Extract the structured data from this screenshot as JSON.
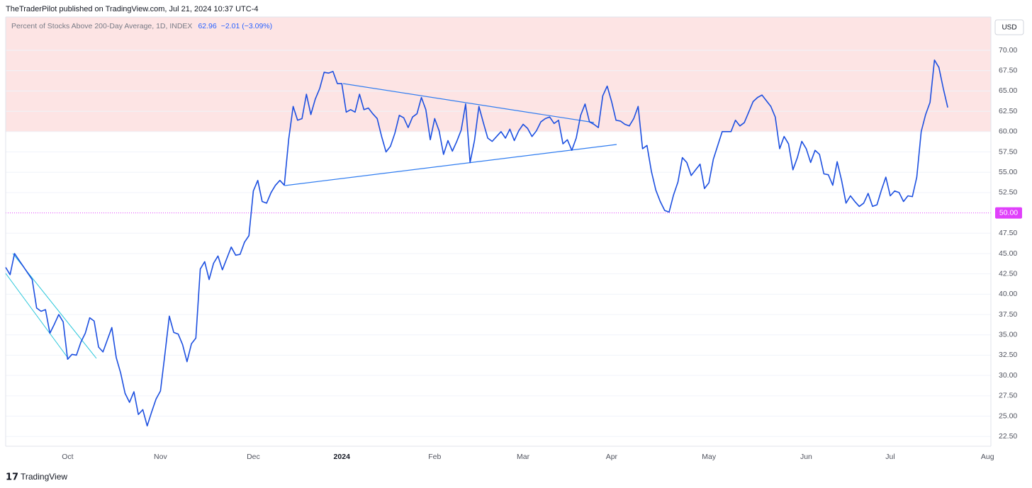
{
  "header": {
    "title": "TheTraderPilot published on TradingView.com, Jul 21, 2024 10:37 UTC-4",
    "currency": "USD",
    "footer": "TradingView"
  },
  "chart_data": {
    "type": "line",
    "series": [
      {
        "name": "Percent of Stocks Above 200-Day Average, 1D, INDEX",
        "color": "#1c4fe0",
        "change_label": "−2.01 (−3.09%)",
        "values": [
          43.3,
          42.4,
          45.0,
          44.2,
          43.4,
          42.6,
          41.8,
          38.3,
          37.9,
          38.1,
          35.2,
          36.3,
          37.5,
          36.6,
          32.0,
          32.6,
          32.5,
          34.1,
          35.2,
          37.1,
          36.7,
          33.5,
          32.9,
          34.4,
          35.9,
          32.2,
          30.3,
          27.8,
          26.7,
          28.0,
          25.2,
          25.8,
          23.8,
          25.5,
          27.1,
          28.1,
          32.6,
          37.3,
          35.3,
          35.1,
          33.8,
          31.7,
          33.9,
          34.6,
          43.1,
          44.0,
          41.8,
          43.8,
          44.7,
          43.0,
          44.4,
          45.8,
          44.8,
          44.9,
          46.4,
          47.2,
          52.7,
          54.0,
          51.4,
          51.2,
          52.5,
          53.4,
          54.0,
          53.4,
          59.1,
          63.1,
          61.4,
          61.6,
          64.6,
          62.1,
          64.0,
          65.3,
          67.3,
          67.2,
          67.4,
          65.9,
          65.9,
          62.4,
          62.7,
          62.4,
          64.6,
          62.7,
          62.9,
          62.2,
          61.6,
          59.4,
          57.5,
          58.2,
          59.8,
          62.0,
          61.7,
          60.5,
          61.8,
          62.2,
          64.2,
          62.7,
          59.0,
          61.6,
          60.1,
          57.2,
          58.9,
          57.6,
          58.8,
          60.2,
          63.4,
          56.2,
          58.9,
          63.1,
          61.1,
          59.2,
          58.8,
          59.4,
          60.0,
          59.2,
          60.3,
          58.9,
          60.1,
          60.9,
          60.4,
          59.4,
          60.1,
          61.2,
          61.6,
          61.8,
          61.0,
          61.4,
          58.5,
          59.0,
          57.7,
          59.2,
          62.0,
          63.4,
          61.2,
          60.9,
          60.5,
          64.4,
          65.6,
          63.7,
          61.4,
          61.3,
          60.9,
          60.7,
          61.6,
          63.1,
          57.9,
          58.3,
          55.1,
          52.8,
          51.4,
          50.3,
          50.1,
          52.2,
          53.8,
          56.8,
          56.2,
          54.6,
          55.3,
          56.0,
          53.0,
          53.7,
          56.6,
          58.3,
          60.0,
          60.0,
          60.0,
          61.4,
          60.7,
          61.1,
          62.4,
          63.7,
          64.2,
          64.5,
          63.8,
          63.1,
          61.8,
          57.9,
          59.4,
          58.5,
          55.3,
          56.8,
          58.8,
          57.9,
          56.2,
          57.7,
          57.2,
          54.8,
          54.7,
          53.4,
          56.3,
          54.0,
          51.2,
          52.1,
          51.4,
          50.8,
          51.2,
          52.4,
          50.8,
          51.0,
          52.8,
          54.4,
          52.1,
          52.7,
          52.5,
          51.4,
          52.1,
          52.0,
          54.4,
          60.0,
          62.1,
          63.6,
          68.8,
          67.9,
          65.3,
          62.96,
          null,
          null,
          null,
          null,
          null,
          null,
          null,
          null,
          null
        ]
      }
    ],
    "categories": [
      null,
      null,
      null,
      null,
      null,
      null,
      null,
      null,
      null,
      null,
      null,
      null,
      null,
      null,
      "Oct",
      null,
      null,
      null,
      null,
      null,
      null,
      null,
      null,
      null,
      null,
      null,
      null,
      null,
      null,
      null,
      null,
      null,
      null,
      null,
      null,
      "Nov",
      null,
      null,
      null,
      null,
      null,
      null,
      null,
      null,
      null,
      null,
      null,
      null,
      null,
      null,
      null,
      null,
      null,
      null,
      null,
      null,
      "Dec",
      null,
      null,
      null,
      null,
      null,
      null,
      null,
      null,
      null,
      null,
      null,
      null,
      null,
      null,
      null,
      null,
      null,
      null,
      null,
      "2024",
      null,
      null,
      null,
      null,
      null,
      null,
      null,
      null,
      null,
      null,
      null,
      null,
      null,
      null,
      null,
      null,
      null,
      null,
      null,
      null,
      "Feb",
      null,
      null,
      null,
      null,
      null,
      null,
      null,
      null,
      null,
      null,
      null,
      null,
      null,
      null,
      null,
      null,
      null,
      null,
      null,
      "Mar",
      null,
      null,
      null,
      null,
      null,
      null,
      null,
      null,
      null,
      null,
      null,
      null,
      null,
      null,
      null,
      null,
      null,
      null,
      null,
      "Apr",
      null,
      null,
      null,
      null,
      null,
      null,
      null,
      null,
      null,
      null,
      null,
      null,
      null,
      null,
      null,
      null,
      null,
      null,
      null,
      null,
      null,
      "May",
      null,
      null,
      null,
      null,
      null,
      null,
      null,
      null,
      null,
      null,
      null,
      null,
      null,
      null,
      null,
      null,
      null,
      null,
      null,
      null,
      null,
      "Jun",
      null,
      null,
      null,
      null,
      null,
      null,
      null,
      null,
      null,
      null,
      null,
      null,
      null,
      null,
      null,
      null,
      null,
      null,
      "Jul",
      null,
      null,
      null,
      null,
      null,
      null,
      null,
      null,
      null,
      null,
      null,
      null,
      null,
      null,
      null,
      null,
      null,
      null,
      null,
      null,
      null,
      "Aug"
    ],
    "ylim": [
      21.3,
      74.1
    ],
    "yticks": [
      {
        "value": 22.5,
        "label": "22.50"
      },
      {
        "value": 25,
        "label": "25.00"
      },
      {
        "value": 27.5,
        "label": "27.50"
      },
      {
        "value": 30,
        "label": "30.00"
      },
      {
        "value": 32.5,
        "label": "32.50"
      },
      {
        "value": 35,
        "label": "35.00"
      },
      {
        "value": 37.5,
        "label": "37.50"
      },
      {
        "value": 40,
        "label": "40.00"
      },
      {
        "value": 42.5,
        "label": "42.50"
      },
      {
        "value": 45,
        "label": "45.00"
      },
      {
        "value": 47.5,
        "label": "47.50"
      },
      {
        "value": 52.5,
        "label": "52.50"
      },
      {
        "value": 55,
        "label": "55.00"
      },
      {
        "value": 57.5,
        "label": "57.50"
      },
      {
        "value": 60,
        "label": "60.00"
      },
      {
        "value": 62.5,
        "label": "62.50"
      },
      {
        "value": 65,
        "label": "65.00"
      },
      {
        "value": 67.5,
        "label": "67.50"
      },
      {
        "value": 70,
        "label": "70.00"
      }
    ],
    "grid": true,
    "zone": {
      "from": 60,
      "color": "#fde4e4"
    },
    "hline": {
      "value": 50,
      "label": "50.00",
      "color": "#e040fb"
    }
  }
}
